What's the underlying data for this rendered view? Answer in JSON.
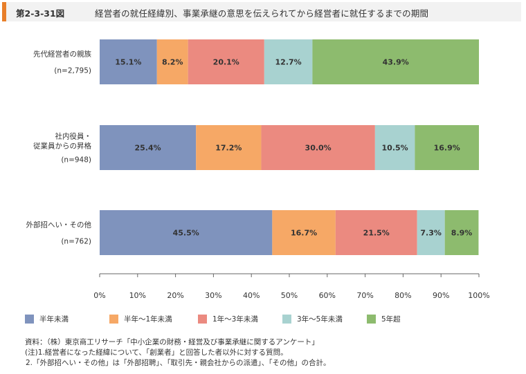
{
  "header": {
    "figure_number": "第2-3-31図",
    "title": "経営者の就任経緯別、事業承継の意思を伝えられてから経営者に就任するまでの期間"
  },
  "chart_data": {
    "type": "bar",
    "orientation": "horizontal",
    "stacked": true,
    "percent": true,
    "title": "経営者の就任経緯別、事業承継の意思を伝えられてから経営者に就任するまでの期間",
    "categories": [
      {
        "lines": [
          "先代経営者の親族"
        ],
        "n": "(n=2,795)"
      },
      {
        "lines": [
          "社内役員・",
          "従業員からの昇格"
        ],
        "n": "(n=948)"
      },
      {
        "lines": [
          "外部招へい・その他"
        ],
        "n": "(n=762)"
      }
    ],
    "series": [
      {
        "name": "半年未満",
        "color": "#7f93bd",
        "values": [
          15.1,
          25.4,
          45.5
        ],
        "labels": [
          "15.1%",
          "25.4%",
          "45.5%"
        ]
      },
      {
        "name": "半年〜1年未満",
        "color": "#f6a866",
        "values": [
          8.2,
          17.2,
          16.7
        ],
        "labels": [
          "8.2%",
          "17.2%",
          "16.7%"
        ]
      },
      {
        "name": "1年〜3年未満",
        "color": "#eb8a80",
        "values": [
          20.1,
          30.0,
          21.5
        ],
        "labels": [
          "20.1%",
          "30.0%",
          "21.5%"
        ]
      },
      {
        "name": "3年〜5年未満",
        "color": "#a8d2d0",
        "values": [
          12.7,
          10.5,
          7.3
        ],
        "labels": [
          "12.7%",
          "10.5%",
          "7.3%"
        ]
      },
      {
        "name": "5年超",
        "color": "#8dbb6e",
        "values": [
          43.9,
          16.9,
          8.9
        ],
        "labels": [
          "43.9%",
          "16.9%",
          "8.9%"
        ]
      }
    ],
    "xlim": [
      0,
      100
    ],
    "xticks": [
      "0%",
      "10%",
      "20%",
      "30%",
      "40%",
      "50%",
      "60%",
      "70%",
      "80%",
      "90%",
      "100%"
    ],
    "grid": false,
    "legend_position": "bottom"
  },
  "notes": {
    "source": "資料：（株）東京商工リサーチ「中小企業の財務・経営及び事業承継に関するアンケート」",
    "note1": "(注)1.経営者になった経緯について、「創業者」と回答した者以外に対する質問。",
    "note2": "2.「外部招へい・その他」は「外部招聘」、「取引先・親会社からの派遣」、「その他」の合計。"
  }
}
